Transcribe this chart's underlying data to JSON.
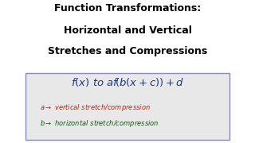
{
  "bg_color": "#ffffff",
  "title_line1": "Function Transformations:",
  "title_line2": "Horizontal and Vertical",
  "title_line3": "Stretches and Compressions",
  "title_color": "#000000",
  "title_fontsize": 9.0,
  "box_bg": "#e8e8e8",
  "box_edge": "#8888bb",
  "formula_color": "#1a3a8a",
  "note_a_color": "#cc2200",
  "note_b_color": "#006600",
  "note_fontsize": 6.0,
  "formula_fontsize": 9.5
}
